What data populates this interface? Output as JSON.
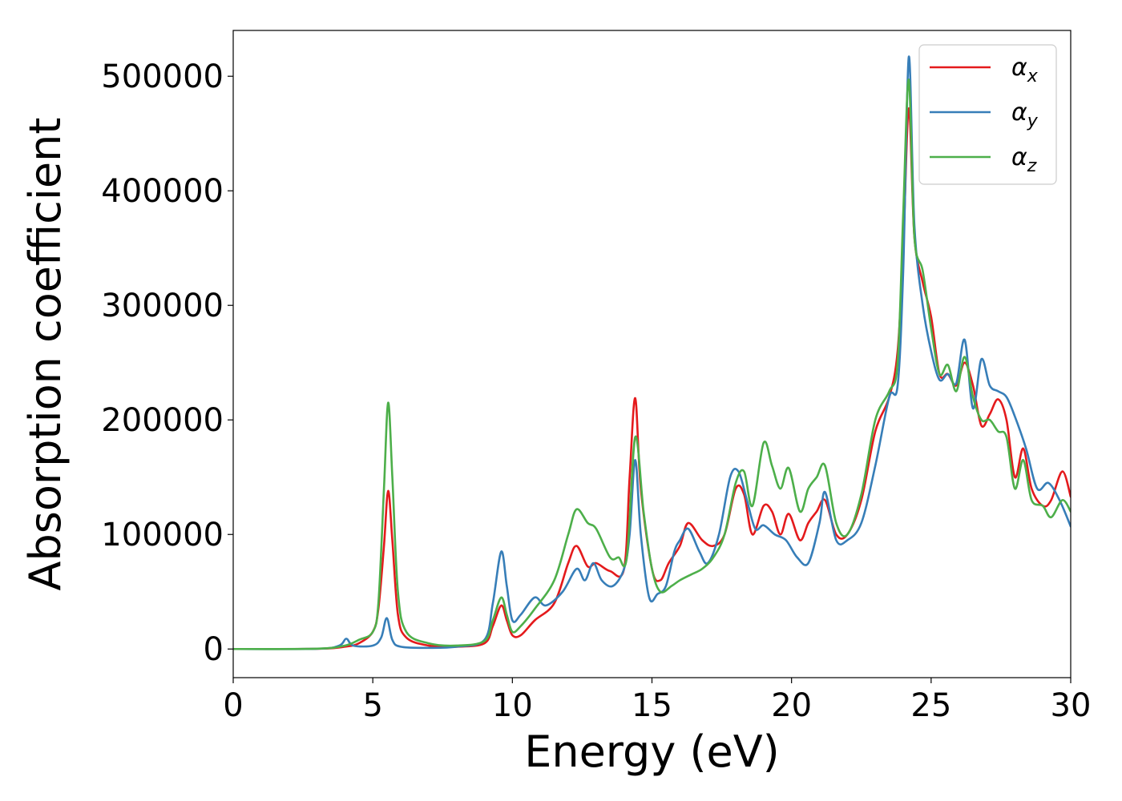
{
  "chart_data": {
    "type": "line",
    "xlabel": "Energy (eV)",
    "ylabel": "Absorption coefficient",
    "xlim": [
      0,
      30
    ],
    "ylim": [
      -25000,
      540000
    ],
    "xticks": [
      "0",
      "5",
      "10",
      "15",
      "20",
      "25",
      "30"
    ],
    "yticks": [
      "0",
      "100000",
      "200000",
      "300000",
      "400000",
      "500000"
    ],
    "grid": false,
    "legend_position": "top-right",
    "series": [
      {
        "name": "αx",
        "symbol": "α",
        "subscript": "x",
        "color": "#e41a1c",
        "x": [
          0,
          3,
          4,
          4.5,
          5,
          5.2,
          5.4,
          5.55,
          5.7,
          5.9,
          6.2,
          7,
          8,
          9,
          9.3,
          9.6,
          9.8,
          10,
          10.3,
          10.8,
          11.5,
          12,
          12.3,
          12.7,
          13,
          13.5,
          14,
          14.2,
          14.4,
          14.6,
          15,
          15.3,
          15.6,
          16,
          16.3,
          16.8,
          17.2,
          17.6,
          18,
          18.3,
          18.6,
          19,
          19.3,
          19.6,
          19.9,
          20.3,
          20.6,
          20.9,
          21.2,
          21.6,
          22,
          22.5,
          23,
          23.5,
          23.8,
          24,
          24.2,
          24.4,
          24.7,
          25,
          25.3,
          25.6,
          25.9,
          26.2,
          26.5,
          26.8,
          27.1,
          27.4,
          27.7,
          28,
          28.3,
          28.6,
          29,
          29.3,
          29.7,
          30
        ],
        "y": [
          0,
          200,
          2000,
          5000,
          15000,
          35000,
          90000,
          138000,
          95000,
          30000,
          10000,
          3000,
          2000,
          5000,
          20000,
          38000,
          25000,
          12000,
          12000,
          25000,
          40000,
          75000,
          90000,
          72000,
          75000,
          68000,
          70000,
          150000,
          219000,
          140000,
          70000,
          60000,
          75000,
          90000,
          110000,
          95000,
          90000,
          100000,
          140000,
          135000,
          100000,
          125000,
          120000,
          100000,
          118000,
          95000,
          110000,
          120000,
          130000,
          100000,
          100000,
          130000,
          190000,
          220000,
          260000,
          350000,
          472000,
          360000,
          320000,
          290000,
          240000,
          240000,
          230000,
          250000,
          230000,
          195000,
          205000,
          218000,
          200000,
          150000,
          175000,
          140000,
          125000,
          130000,
          155000,
          133000
        ]
      },
      {
        "name": "αy",
        "symbol": "α",
        "subscript": "y",
        "color": "#377eb8",
        "x": [
          0,
          3,
          3.8,
          4.05,
          4.3,
          5,
          5.3,
          5.5,
          5.7,
          6,
          7,
          8,
          9,
          9.3,
          9.6,
          9.8,
          10,
          10.3,
          10.8,
          11.2,
          11.8,
          12.3,
          12.6,
          12.9,
          13.2,
          13.6,
          14,
          14.2,
          14.4,
          14.6,
          14.9,
          15.2,
          15.5,
          15.8,
          16,
          16.3,
          16.7,
          17,
          17.4,
          17.8,
          18.1,
          18.4,
          18.7,
          19,
          19.4,
          19.8,
          20.2,
          20.6,
          21,
          21.2,
          21.6,
          22,
          22.5,
          23,
          23.5,
          23.8,
          24,
          24.2,
          24.4,
          24.7,
          25,
          25.3,
          25.6,
          25.9,
          26.2,
          26.5,
          26.8,
          27.1,
          27.4,
          27.7,
          28,
          28.4,
          28.8,
          29.2,
          29.6,
          30
        ],
        "y": [
          0,
          200,
          3000,
          9000,
          3000,
          3000,
          10000,
          27000,
          8000,
          2000,
          1000,
          2000,
          8000,
          40000,
          85000,
          55000,
          25000,
          30000,
          45000,
          38000,
          50000,
          70000,
          60000,
          75000,
          60000,
          55000,
          70000,
          100000,
          165000,
          100000,
          45000,
          48000,
          55000,
          85000,
          95000,
          105000,
          85000,
          75000,
          100000,
          150000,
          155000,
          130000,
          105000,
          108000,
          100000,
          95000,
          80000,
          75000,
          110000,
          137000,
          95000,
          95000,
          110000,
          160000,
          220000,
          230000,
          330000,
          517000,
          370000,
          300000,
          260000,
          235000,
          240000,
          232000,
          270000,
          210000,
          253000,
          230000,
          225000,
          220000,
          203000,
          175000,
          140000,
          145000,
          130000,
          107000
        ]
      },
      {
        "name": "αz",
        "symbol": "α",
        "subscript": "z",
        "color": "#4daf4a",
        "x": [
          0,
          3,
          4,
          4.5,
          5,
          5.2,
          5.4,
          5.55,
          5.7,
          5.9,
          6.2,
          7,
          8,
          9,
          9.3,
          9.6,
          9.8,
          10,
          10.3,
          10.8,
          11.5,
          12,
          12.3,
          12.7,
          13,
          13.5,
          13.8,
          14.1,
          14.4,
          14.7,
          15,
          15.3,
          15.7,
          16,
          16.4,
          16.8,
          17.2,
          17.6,
          18,
          18.3,
          18.6,
          19,
          19.3,
          19.6,
          19.9,
          20.3,
          20.6,
          20.9,
          21.2,
          21.6,
          22,
          22.5,
          23,
          23.5,
          23.8,
          24,
          24.2,
          24.4,
          24.7,
          25,
          25.3,
          25.6,
          25.9,
          26.2,
          26.5,
          26.8,
          27.1,
          27.4,
          27.7,
          28,
          28.3,
          28.6,
          29,
          29.3,
          29.7,
          30
        ],
        "y": [
          0,
          300,
          3000,
          8000,
          15000,
          40000,
          140000,
          215000,
          150000,
          50000,
          15000,
          5000,
          3000,
          7000,
          25000,
          45000,
          30000,
          15000,
          20000,
          35000,
          60000,
          100000,
          122000,
          110000,
          105000,
          80000,
          80000,
          80000,
          185000,
          120000,
          70000,
          50000,
          55000,
          60000,
          65000,
          70000,
          80000,
          100000,
          145000,
          155000,
          125000,
          180000,
          160000,
          140000,
          158000,
          120000,
          140000,
          150000,
          160000,
          110000,
          100000,
          135000,
          200000,
          225000,
          250000,
          380000,
          497000,
          360000,
          330000,
          280000,
          240000,
          248000,
          225000,
          255000,
          220000,
          200000,
          200000,
          190000,
          185000,
          140000,
          165000,
          130000,
          125000,
          115000,
          130000,
          120000
        ]
      }
    ]
  }
}
